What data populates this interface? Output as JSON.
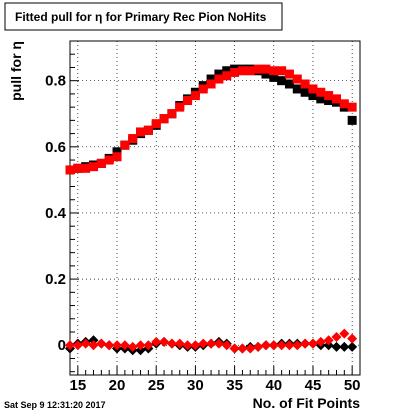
{
  "chart_data": {
    "type": "scatter",
    "title": "Fitted pull for  η for Primary Rec Pion NoHits",
    "xlabel": "No. of Fit Points",
    "ylabel": "pull for  η",
    "timestamp": "Sat Sep  9 12:31:20 2017",
    "xlim": [
      14,
      51
    ],
    "ylim": [
      -0.09,
      0.92
    ],
    "grid": true,
    "x_ticks": [
      15,
      20,
      25,
      30,
      35,
      40,
      45,
      50
    ],
    "x_tick_labels": [
      "15",
      "20",
      "25",
      "30",
      "35",
      "40",
      "45",
      "50"
    ],
    "y_ticks": [
      0,
      0.2,
      0.4,
      0.6,
      0.8
    ],
    "y_tick_labels": [
      "0",
      "0.2",
      "0.4",
      "0.6",
      "0.8"
    ],
    "x": [
      14,
      15,
      16,
      17,
      18,
      19,
      20,
      21,
      22,
      23,
      24,
      25,
      26,
      27,
      28,
      29,
      30,
      31,
      32,
      33,
      34,
      35,
      36,
      37,
      38,
      39,
      40,
      41,
      42,
      43,
      44,
      45,
      46,
      47,
      48,
      49,
      50
    ],
    "series": [
      {
        "color": "#000000",
        "marker": "square",
        "values": [
          0.53,
          0.535,
          0.54,
          0.545,
          0.55,
          0.565,
          0.585,
          0.605,
          0.62,
          0.64,
          0.65,
          0.665,
          0.685,
          0.7,
          0.725,
          0.745,
          0.765,
          0.785,
          0.805,
          0.82,
          0.83,
          0.835,
          0.835,
          0.835,
          0.83,
          0.82,
          0.81,
          0.8,
          0.79,
          0.775,
          0.765,
          0.755,
          0.745,
          0.74,
          0.735,
          0.72,
          0.68
        ]
      },
      {
        "color": "#ff0000",
        "marker": "square",
        "values": [
          0.53,
          0.535,
          0.535,
          0.54,
          0.55,
          0.56,
          0.57,
          0.605,
          0.625,
          0.645,
          0.65,
          0.67,
          0.685,
          0.7,
          0.72,
          0.74,
          0.755,
          0.775,
          0.79,
          0.805,
          0.815,
          0.825,
          0.83,
          0.83,
          0.835,
          0.835,
          0.83,
          0.83,
          0.82,
          0.805,
          0.79,
          0.775,
          0.765,
          0.755,
          0.745,
          0.73,
          0.72
        ]
      },
      {
        "color": "#000000",
        "marker": "diamond",
        "values": [
          -0.01,
          0.005,
          0.01,
          0.015,
          0.005,
          0.0,
          -0.01,
          -0.01,
          -0.015,
          -0.015,
          -0.01,
          0.005,
          0.01,
          0.005,
          0.0,
          -0.005,
          -0.005,
          0.0,
          0.005,
          0.01,
          0.005,
          -0.01,
          -0.01,
          -0.005,
          -0.005,
          0.0,
          0.0,
          0.005,
          0.005,
          0.005,
          0.005,
          0.005,
          0.0,
          0.0,
          -0.005,
          -0.005,
          -0.005
        ]
      },
      {
        "color": "#ff0000",
        "marker": "diamond",
        "values": [
          0.0,
          0.0,
          0.005,
          0.0,
          0.005,
          0.0,
          0.0,
          0.0,
          -0.005,
          0.0,
          0.0,
          0.01,
          0.01,
          0.005,
          0.005,
          0.0,
          0.0,
          0.005,
          0.005,
          0.005,
          0.0,
          -0.01,
          -0.01,
          -0.01,
          -0.005,
          0.0,
          0.0,
          0.0,
          0.0,
          0.0,
          0.005,
          0.005,
          0.01,
          0.015,
          0.025,
          0.035,
          0.02
        ]
      }
    ]
  }
}
